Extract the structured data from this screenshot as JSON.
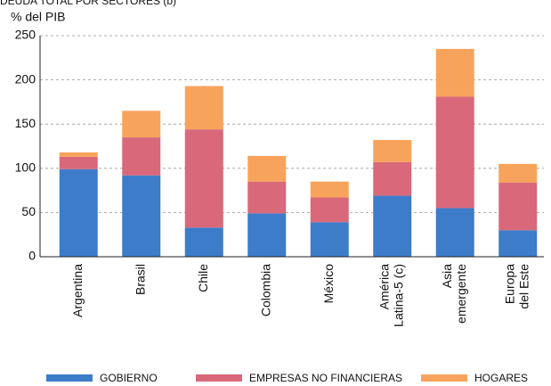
{
  "chart_data": {
    "type": "stacked_bar",
    "title": "DEUDA TOTAL POR SECTORES (b)",
    "y_label": "% del PIB",
    "categories": [
      [
        "Argentina"
      ],
      [
        "Brasil"
      ],
      [
        "Chile"
      ],
      [
        "Colombia"
      ],
      [
        "México"
      ],
      [
        "América",
        "Latina-5 (c)"
      ],
      [
        "Asia",
        "emergente"
      ],
      [
        "Europa",
        "del Este"
      ]
    ],
    "series": [
      {
        "name": "GOBIERNO",
        "color": "#3d7cc9",
        "values": [
          99,
          92,
          33,
          49,
          39,
          69,
          55,
          30
        ]
      },
      {
        "name": "EMPRESAS NO FINANCIERAS",
        "color": "#d9687a",
        "values": [
          14,
          43,
          111,
          36,
          28,
          38,
          126,
          54
        ]
      },
      {
        "name": "HOGARES",
        "color": "#f7a35c",
        "values": [
          5,
          30,
          49,
          29,
          18,
          25,
          54,
          21
        ]
      }
    ],
    "ylim": [
      0,
      250
    ],
    "yticks": [
      0,
      50,
      100,
      150,
      200,
      250
    ],
    "grid": true
  }
}
